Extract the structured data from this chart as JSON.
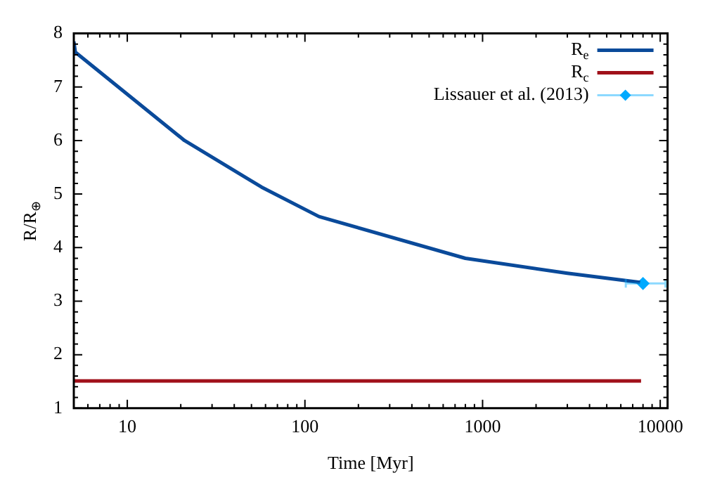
{
  "chart_data": {
    "type": "line",
    "xlabel": "Time [Myr]",
    "ylabel": "R/R$_{⊕}$",
    "log": "x",
    "xlim": [
      5,
      11000
    ],
    "xticks": [
      10,
      100,
      1000,
      10000
    ],
    "ylim": [
      1,
      8
    ],
    "yticks": [
      1,
      2,
      3,
      4,
      5,
      6,
      7,
      8
    ],
    "grid": false,
    "legend": "top right",
    "series": [
      {
        "name": "R$_{e}$",
        "color": "#0a4a9a",
        "x": [
          5,
          5.1,
          21,
          57,
          120,
          800,
          3000,
          7700
        ],
        "values": [
          7.85,
          7.65,
          6.0,
          5.13,
          4.58,
          3.8,
          3.52,
          3.35
        ]
      },
      {
        "name": "R$_{c}$",
        "color": "#a0101a",
        "x": [
          5,
          7800
        ],
        "values": [
          1.51,
          1.51
        ]
      },
      {
        "name": "Lissauer et al. (2013)",
        "type": "scatter",
        "marker": "diamond",
        "color": "#00aaff",
        "x": [
          8000
        ],
        "values": [
          3.33
        ],
        "xerrors": [
          [
            6400,
            10700
          ]
        ]
      }
    ]
  }
}
